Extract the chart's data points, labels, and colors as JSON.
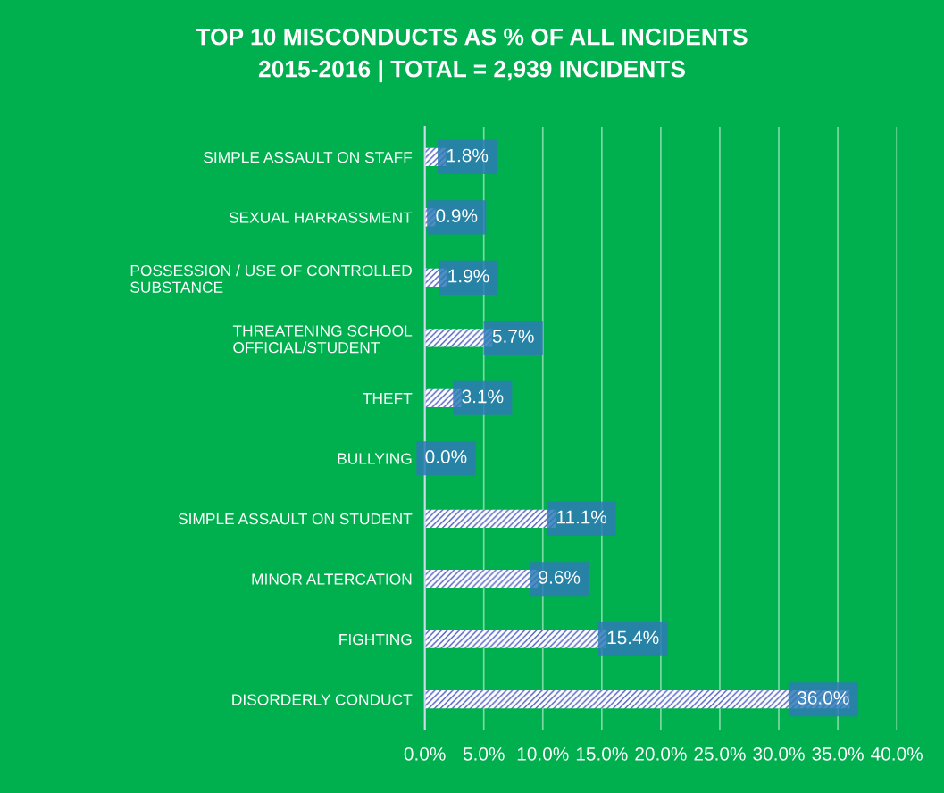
{
  "chart_data": {
    "type": "bar",
    "orientation": "horizontal",
    "title": "TOP 10 MISCONDUCTS AS % OF ALL INCIDENTS\n2015-2016 | TOTAL = 2,939 INCIDENTS",
    "categories": [
      "SIMPLE ASSAULT ON STAFF",
      "SEXUAL HARRASSMENT",
      "POSSESSION / USE OF CONTROLLED\nSUBSTANCE",
      "THREATENING SCHOOL\nOFFICIAL/STUDENT",
      "THEFT",
      "BULLYING",
      "SIMPLE ASSAULT ON STUDENT",
      "MINOR ALTERCATION",
      "FIGHTING",
      "DISORDERLY CONDUCT"
    ],
    "values": [
      1.8,
      0.9,
      1.9,
      5.7,
      3.1,
      0.0,
      11.1,
      9.6,
      15.4,
      36.0
    ],
    "value_labels": [
      "1.8%",
      "0.9%",
      "1.9%",
      "5.7%",
      "3.1%",
      "0.0%",
      "11.1%",
      "9.6%",
      "15.4%",
      "36.0%"
    ],
    "color": "#4a5fc1",
    "xlim": [
      0,
      40
    ],
    "xticks": [
      {
        "value": 0,
        "label": "0.0%"
      },
      {
        "value": 5,
        "label": "5.0%"
      },
      {
        "value": 10,
        "label": "10.0%"
      },
      {
        "value": 15,
        "label": "15.0%"
      },
      {
        "value": 20,
        "label": "20.0%"
      },
      {
        "value": 25,
        "label": "25.0%"
      },
      {
        "value": 30,
        "label": "30.0%"
      },
      {
        "value": 35,
        "label": "35.0%"
      },
      {
        "value": 40,
        "label": "40.0%"
      }
    ],
    "grid": "x"
  }
}
